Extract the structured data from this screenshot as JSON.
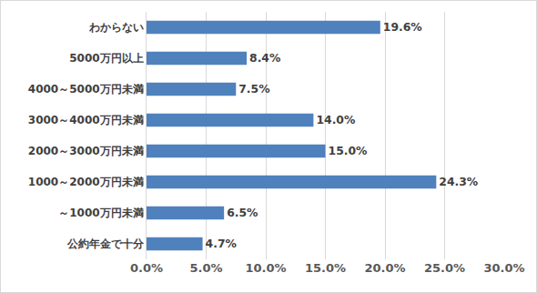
{
  "chart_data": {
    "type": "bar",
    "orientation": "horizontal",
    "categories": [
      "わからない",
      "5000万円以上",
      "4000～5000万円未満",
      "3000～4000万円未満",
      "2000～3000万円未満",
      "1000～2000万円未満",
      "～1000万円未満",
      "公約年金で十分"
    ],
    "values": [
      19.6,
      8.4,
      7.5,
      14.0,
      15.0,
      24.3,
      6.5,
      4.7
    ],
    "value_labels": [
      "19.6%",
      "8.4%",
      "7.5%",
      "14.0%",
      "15.0%",
      "24.3%",
      "6.5%",
      "4.7%"
    ],
    "color": "#4f81bd",
    "xlim": [
      0,
      30
    ],
    "xticks": [
      {
        "value": 0,
        "label": "0.0%"
      },
      {
        "value": 5,
        "label": "5.0%"
      },
      {
        "value": 10,
        "label": "10.0%"
      },
      {
        "value": 15,
        "label": "15.0%"
      },
      {
        "value": 20,
        "label": "20.0%"
      },
      {
        "value": 25,
        "label": "25.0%"
      },
      {
        "value": 30,
        "label": "30.0%"
      }
    ],
    "grid": true,
    "data_labels": true
  }
}
